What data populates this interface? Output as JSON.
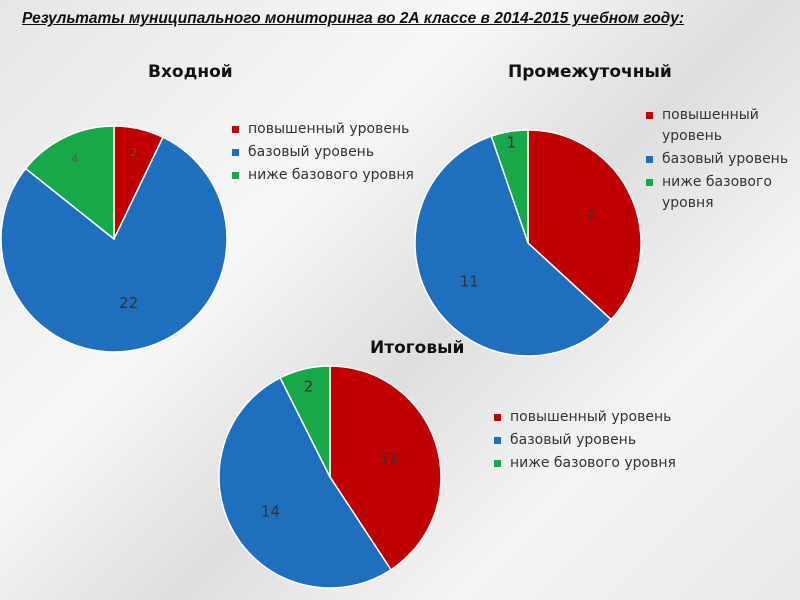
{
  "page_title": "Результаты муниципального мониторинга во 2А классе в 2014-2015 учебном году:",
  "colors": {
    "high": "#c00000",
    "base": "#1f6fbf",
    "low": "#17a84a"
  },
  "chart_data": [
    {
      "type": "pie",
      "title": "Входной",
      "categories": [
        "повышенный уровень",
        "базовый уровень",
        "ниже базового уровня"
      ],
      "values": [
        2,
        22,
        4
      ],
      "colors": [
        "#c00000",
        "#1f6fbf",
        "#17a84a"
      ],
      "legend_position": "right"
    },
    {
      "type": "pie",
      "title": "Промежуточный",
      "categories": [
        "повышенный уровень",
        "базовый уровень",
        "ниже базового уровня"
      ],
      "values": [
        7,
        11,
        1
      ],
      "colors": [
        "#c00000",
        "#1f6fbf",
        "#17a84a"
      ],
      "legend_position": "right"
    },
    {
      "type": "pie",
      "title": "Итоговый",
      "categories": [
        "повышенный уровень",
        "базовый уровень",
        "ниже базового уровня"
      ],
      "values": [
        11,
        14,
        2
      ],
      "colors": [
        "#c00000",
        "#1f6fbf",
        "#17a84a"
      ],
      "legend_position": "right"
    }
  ]
}
